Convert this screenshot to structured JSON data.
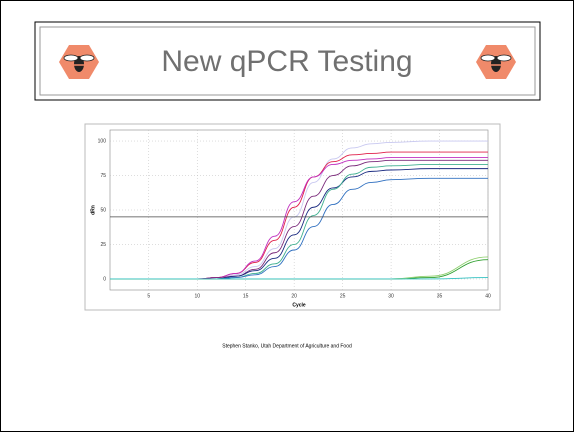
{
  "title": "New qPCR Testing",
  "caption": "Stephen Stanko, Utah Department of Agriculture and Food",
  "chart_data": {
    "type": "line",
    "xlabel": "Cycle",
    "ylabel": "dRn",
    "x": [
      1,
      5,
      10,
      12,
      14,
      16,
      18,
      20,
      22,
      24,
      26,
      28,
      30,
      34,
      40
    ],
    "xlim": [
      1,
      40
    ],
    "xticks": [
      5,
      10,
      15,
      20,
      25,
      30,
      35,
      40
    ],
    "ylim": [
      -8,
      108
    ],
    "yticks": [
      0,
      25,
      50,
      75,
      100
    ],
    "grid": true,
    "threshold": 45,
    "series": [
      {
        "color": "#c8c8f0",
        "values": [
          0,
          0,
          0,
          1,
          3,
          9,
          22,
          45,
          70,
          87,
          95,
          98,
          99,
          100,
          100
        ]
      },
      {
        "color": "#e0204a",
        "values": [
          0,
          0,
          0,
          1,
          4,
          12,
          28,
          52,
          74,
          85,
          90,
          91,
          92,
          92,
          92
        ]
      },
      {
        "color": "#c030c0",
        "values": [
          0,
          0,
          0,
          1,
          4,
          13,
          31,
          56,
          74,
          83,
          86,
          87,
          88,
          88,
          88
        ]
      },
      {
        "color": "#7a2a7a",
        "values": [
          0,
          0,
          0,
          1,
          2,
          7,
          19,
          38,
          60,
          75,
          82,
          85,
          86,
          86,
          86
        ]
      },
      {
        "color": "#1a2a80",
        "values": [
          0,
          0,
          0,
          0,
          2,
          6,
          15,
          32,
          52,
          66,
          74,
          78,
          79,
          80,
          80
        ]
      },
      {
        "color": "#40b090",
        "values": [
          0,
          0,
          0,
          0,
          1,
          4,
          11,
          25,
          46,
          65,
          76,
          81,
          82,
          83,
          83
        ]
      },
      {
        "color": "#3070c0",
        "values": [
          0,
          0,
          0,
          0,
          1,
          3,
          9,
          21,
          38,
          54,
          65,
          70,
          72,
          73,
          73
        ]
      },
      {
        "color": "#30a030",
        "values": [
          0,
          0,
          0,
          0,
          0,
          0,
          0,
          0,
          0,
          0,
          0,
          0,
          0,
          1,
          14
        ]
      },
      {
        "color": "#90d070",
        "values": [
          0,
          0,
          0,
          0,
          0,
          0,
          0,
          0,
          0,
          0,
          0,
          0,
          0,
          2,
          16
        ]
      },
      {
        "color": "#30c0c0",
        "values": [
          0,
          0,
          0,
          0,
          0,
          0,
          0,
          0,
          0,
          0,
          0,
          0,
          0,
          0,
          1
        ]
      }
    ]
  }
}
